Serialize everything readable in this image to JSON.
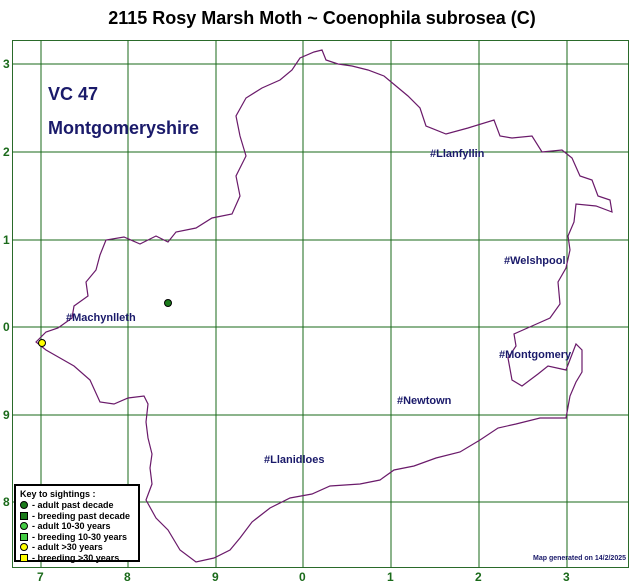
{
  "title": "2115 Rosy Marsh Moth ~ Coenophila subrosea (C)",
  "vc_number": "VC 47",
  "vc_name": "Montgomeryshire",
  "towns": {
    "llanfyllin": "#Llanfyllin",
    "welshpool": "#Welshpool",
    "machynlleth": "#Machynlleth",
    "montgomery": "#Montgomery",
    "newtown": "#Newtown",
    "llanidloes": "#Llanidloes"
  },
  "grid": {
    "x_labels": [
      "7",
      "8",
      "9",
      "0",
      "1",
      "2",
      "3"
    ],
    "y_labels": [
      "3",
      "2",
      "1",
      "0",
      "9",
      "8"
    ]
  },
  "key": {
    "title": "Key to sightings :",
    "items": [
      {
        "label": "- adult past decade",
        "color": "#1a7a1a",
        "shape": "circle"
      },
      {
        "label": "- breeding past decade",
        "color": "#1a7a1a",
        "shape": "square"
      },
      {
        "label": "- adult 10-30 years",
        "color": "#44cc44",
        "shape": "circle"
      },
      {
        "label": "- breeding 10-30 years",
        "color": "#44cc44",
        "shape": "square"
      },
      {
        "label": "- adult >30 years",
        "color": "#ffff00",
        "shape": "circle"
      },
      {
        "label": "- breeding >30 years",
        "color": "#ffff00",
        "shape": "square"
      }
    ]
  },
  "sightings": [
    {
      "category": "adult past decade",
      "color": "#1a7a1a"
    },
    {
      "category": "adult >30 years",
      "color": "#ffff00"
    }
  ],
  "credit": "Map generated on 14/2/2025",
  "colors": {
    "grid": "#1a6a1a",
    "boundary": "#6a1a6a",
    "text": "#1a1a6a"
  }
}
